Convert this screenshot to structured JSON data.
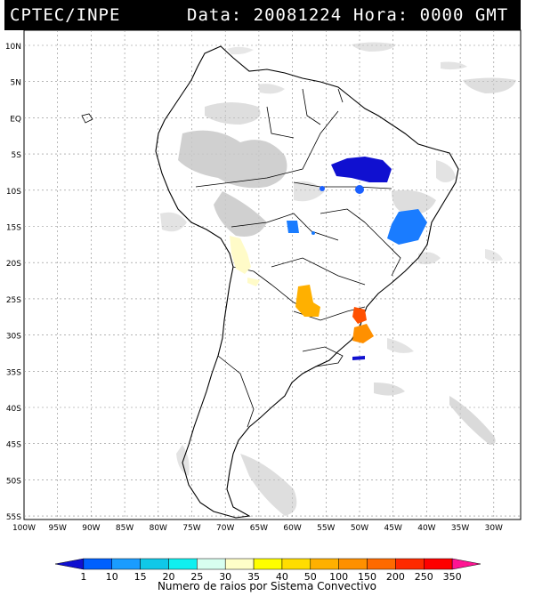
{
  "header": {
    "source": "CPTEC/INPE",
    "date_label": "Data: 20081224",
    "time_label": "Hora: 0000 GMT"
  },
  "axes": {
    "lat_labels": [
      "10N",
      "5N",
      "EQ",
      "5S",
      "10S",
      "15S",
      "20S",
      "25S",
      "30S",
      "35S",
      "40S",
      "45S",
      "50S",
      "55S"
    ],
    "lon_labels": [
      "100W",
      "95W",
      "90W",
      "85W",
      "80W",
      "75W",
      "70W",
      "65W",
      "60W",
      "55W",
      "50W",
      "45W",
      "40W",
      "35W",
      "30W"
    ]
  },
  "legend": {
    "values": [
      "1",
      "10",
      "15",
      "20",
      "25",
      "30",
      "35",
      "40",
      "50",
      "100",
      "150",
      "200",
      "250",
      "350"
    ],
    "colors": [
      "#1010d0",
      "#0060ff",
      "#1a9cff",
      "#10c8e8",
      "#10f0f0",
      "#d8fff0",
      "#ffffc8",
      "#ffff00",
      "#ffdd00",
      "#ffb000",
      "#ff9000",
      "#ff6a00",
      "#ff2a00",
      "#ff0000",
      "#ff1493"
    ],
    "caption": "Numero de raios por Sistema Convectivo"
  }
}
